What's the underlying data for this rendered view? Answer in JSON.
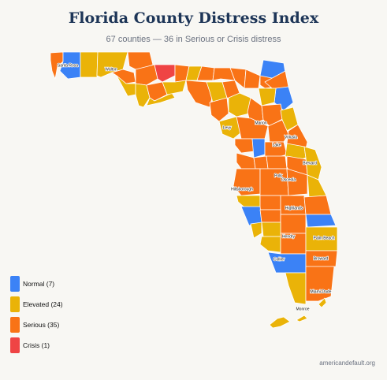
{
  "title": "Florida County Distress Index",
  "subtitle": "67 counties — 36 in Serious or Crisis distress",
  "colors": {
    "normal": "#3b82f6",
    "elevated": "#eab308",
    "serious": "#f97316",
    "crisis": "#ef4444",
    "border": "#ffffff"
  },
  "legend": [
    {
      "level": "normal",
      "label": "Normal (7)"
    },
    {
      "level": "elevated",
      "label": "Elevated (24)"
    },
    {
      "level": "serious",
      "label": "Serious (35)"
    },
    {
      "level": "crisis",
      "label": "Crisis (1)"
    }
  ],
  "county_labels": [
    "Santa Rosa",
    "Walton",
    "Marion",
    "Levy",
    "Volusia",
    "Lake",
    "Brevard",
    "Polk",
    "Osceola",
    "Hillsborough",
    "Highlands",
    "Hendry",
    "Palm Beach",
    "Collier",
    "Broward",
    "Miami-Dade",
    "Monroe"
  ],
  "source": "americandefault.org"
}
